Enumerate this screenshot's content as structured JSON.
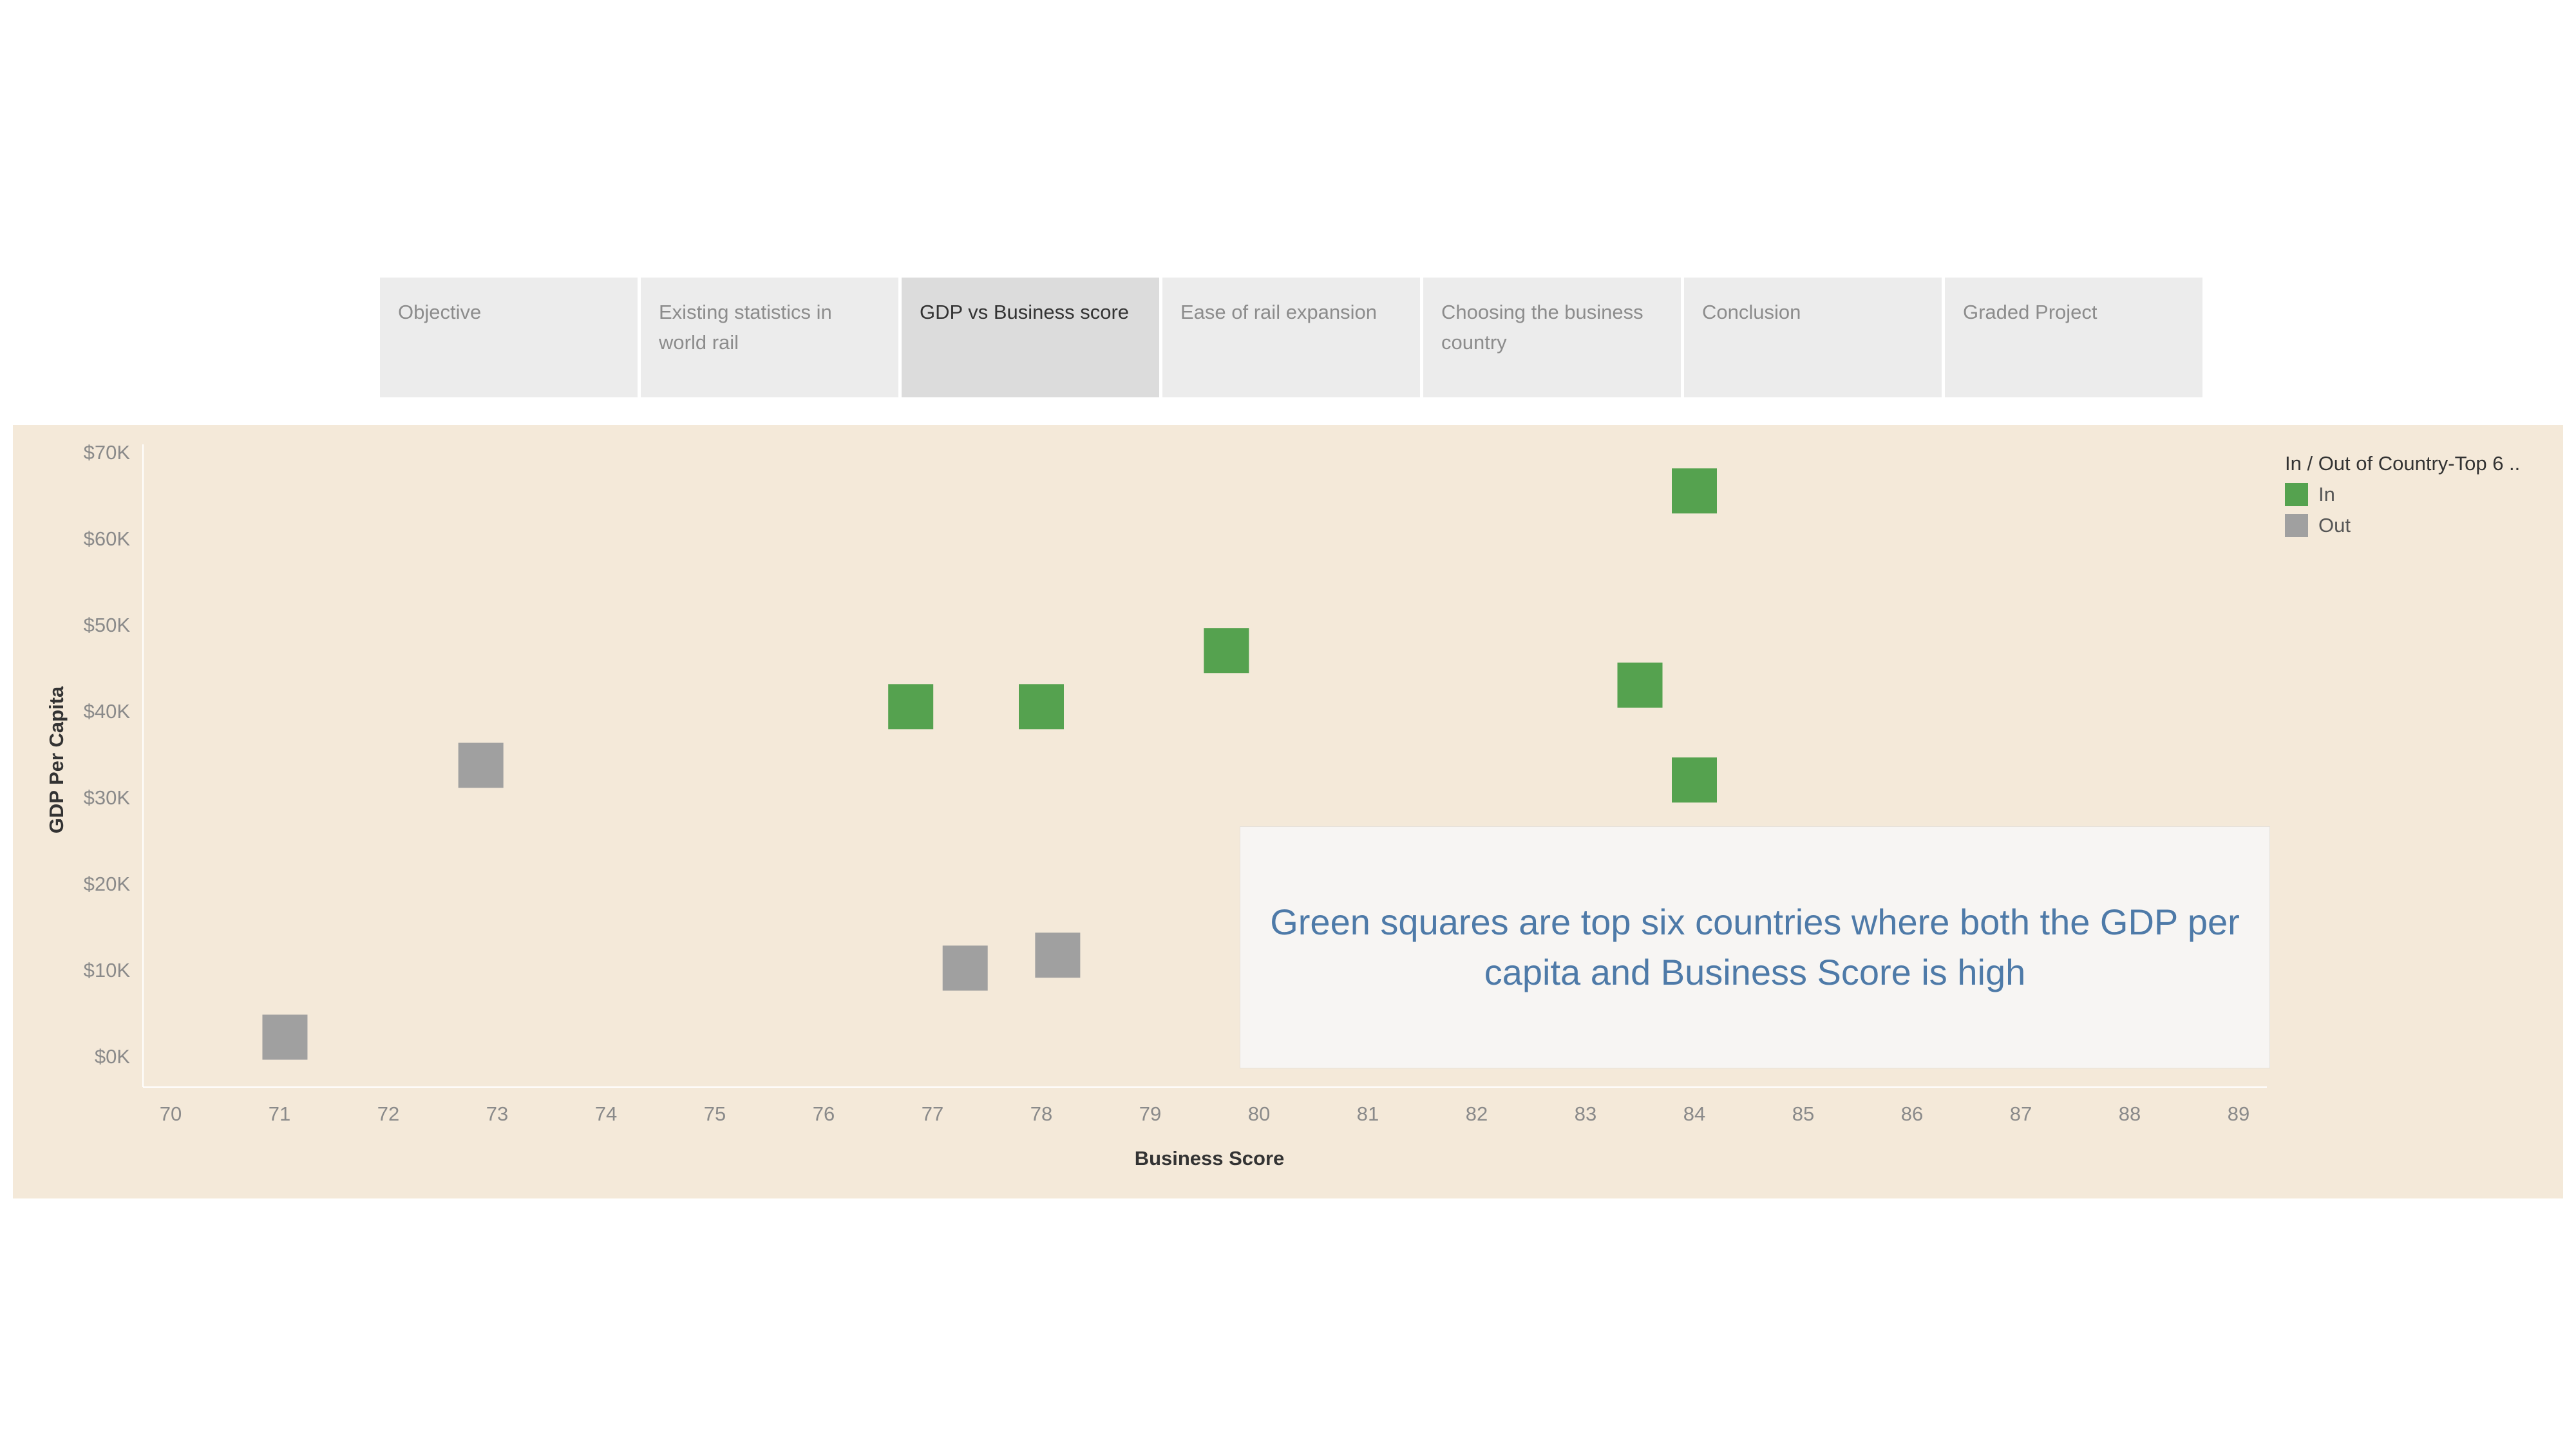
{
  "tabs": [
    {
      "label": "Objective",
      "active": false
    },
    {
      "label": "Existing statistics in world rail",
      "active": false
    },
    {
      "label": "GDP vs Business score",
      "active": true
    },
    {
      "label": "Ease of rail expansion",
      "active": false
    },
    {
      "label": "Choosing the business country",
      "active": false
    },
    {
      "label": "Conclusion",
      "active": false
    },
    {
      "label": "Graded Project",
      "active": false
    }
  ],
  "annotation": {
    "text": "Green squares are top six countries where both the GDP per capita and Business Score is high"
  },
  "colors": {
    "in": "#55a24f",
    "out": "#a0a0a0",
    "panel_background": "#f4e9d9"
  },
  "chart_data": {
    "type": "scatter",
    "xlabel": "Business Score",
    "ylabel": "GDP Per Capita",
    "xlim": [
      70,
      89
    ],
    "ylim": [
      0,
      70000
    ],
    "x_ticks": [
      "70",
      "71",
      "72",
      "73",
      "74",
      "75",
      "76",
      "77",
      "78",
      "79",
      "80",
      "81",
      "82",
      "83",
      "84",
      "85",
      "86",
      "87",
      "88",
      "89"
    ],
    "y_ticks": [
      "$0K",
      "$10K",
      "$20K",
      "$30K",
      "$40K",
      "$50K",
      "$60K",
      "$70K"
    ],
    "legend": {
      "title": "In / Out of Country-Top 6 ..",
      "position": "top-right",
      "entries": [
        "In",
        "Out"
      ]
    },
    "series": [
      {
        "name": "In",
        "color": "#55a24f",
        "points": [
          {
            "x": 84.0,
            "y": 65500
          },
          {
            "x": 79.7,
            "y": 47000
          },
          {
            "x": 83.5,
            "y": 43000
          },
          {
            "x": 76.8,
            "y": 40500
          },
          {
            "x": 78.0,
            "y": 40500
          },
          {
            "x": 84.0,
            "y": 32000
          }
        ]
      },
      {
        "name": "Out",
        "color": "#a0a0a0",
        "points": [
          {
            "x": 72.85,
            "y": 33700
          },
          {
            "x": 78.15,
            "y": 11700
          },
          {
            "x": 77.3,
            "y": 10200
          },
          {
            "x": 71.05,
            "y": 2200
          }
        ]
      }
    ]
  }
}
